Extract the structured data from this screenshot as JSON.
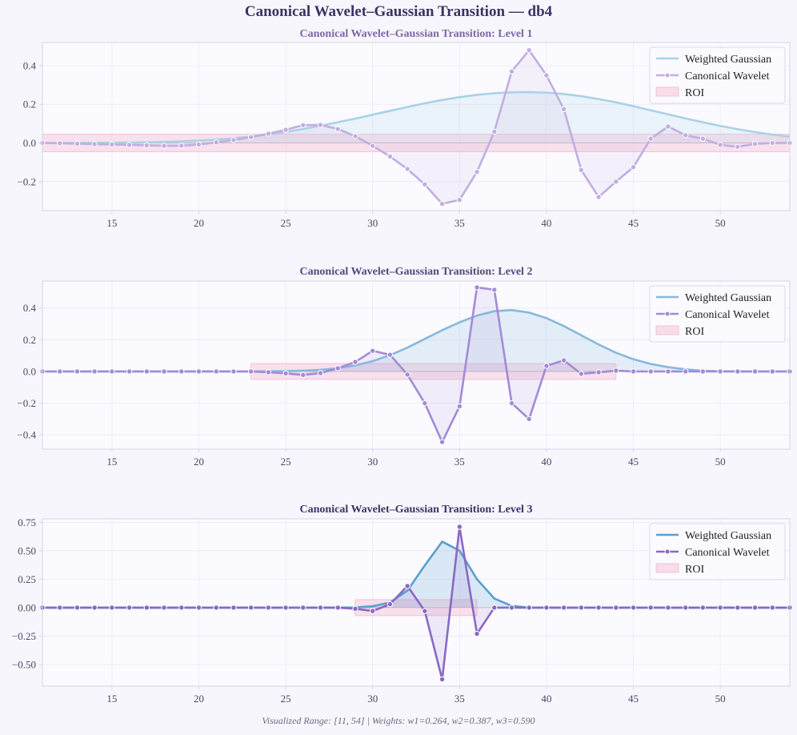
{
  "suptitle": "Canonical Wavelet–Gaussian Transition — db4",
  "footer": "Visualized Range: [11, 54] | Weights: w1=0.264, w2=0.387, w3=0.590",
  "colors": {
    "background": "#f8f6fd",
    "plot_bg": "#fbfaff",
    "frame": "#d8d2ea",
    "grid": "#ece8f6",
    "roi": "#f7cfdf",
    "tick_text": "#4b4566",
    "zero_line": "#8c88a0"
  },
  "chart_data": [
    {
      "type": "line",
      "title": "Canonical Wavelet–Gaussian Transition: Level 1",
      "title_color": "#7b68a6",
      "xlim": [
        11,
        54
      ],
      "ylim": [
        -0.35,
        0.52
      ],
      "yticks": [
        0.4,
        0.2,
        0.0,
        -0.2
      ],
      "ytick_labels": [
        "0.4",
        "0.2",
        "0.0",
        "−0.2"
      ],
      "xticks": [
        15,
        20,
        25,
        30,
        35,
        40,
        45,
        50
      ],
      "xtick_labels": [
        "15",
        "20",
        "25",
        "30",
        "35",
        "40",
        "45",
        "50"
      ],
      "roi": {
        "x": [
          11,
          54
        ],
        "y": [
          -0.045,
          0.045
        ]
      },
      "legend_position": "top-right",
      "legend": [
        "Weighted Gaussian",
        "Canonical Wavelet",
        "ROI"
      ],
      "gaussian_color": "#a9d2e6",
      "wavelet_color": "#c2aee0",
      "x": [
        11,
        12,
        13,
        14,
        15,
        16,
        17,
        18,
        19,
        20,
        21,
        22,
        23,
        24,
        25,
        26,
        27,
        28,
        29,
        30,
        31,
        32,
        33,
        34,
        35,
        36,
        37,
        38,
        39,
        40,
        41,
        42,
        43,
        44,
        45,
        46,
        47,
        48,
        49,
        50,
        51,
        52,
        53,
        54
      ],
      "series": [
        {
          "name": "Weighted Gaussian",
          "values": [
            0.0,
            0.0,
            0.0,
            0.001,
            0.001,
            0.002,
            0.003,
            0.005,
            0.008,
            0.012,
            0.017,
            0.024,
            0.033,
            0.044,
            0.057,
            0.072,
            0.089,
            0.107,
            0.126,
            0.146,
            0.166,
            0.186,
            0.205,
            0.222,
            0.237,
            0.249,
            0.257,
            0.262,
            0.263,
            0.26,
            0.253,
            0.242,
            0.227,
            0.21,
            0.19,
            0.169,
            0.148,
            0.127,
            0.107,
            0.088,
            0.071,
            0.056,
            0.043,
            0.032
          ]
        },
        {
          "name": "Canonical Wavelet",
          "values": [
            0.0,
            -0.002,
            -0.004,
            -0.006,
            -0.008,
            -0.01,
            -0.012,
            -0.015,
            -0.014,
            -0.008,
            0.003,
            0.015,
            0.03,
            0.048,
            0.068,
            0.092,
            0.093,
            0.072,
            0.035,
            -0.015,
            -0.07,
            -0.135,
            -0.215,
            -0.315,
            -0.295,
            -0.15,
            0.058,
            0.37,
            0.48,
            0.35,
            0.175,
            -0.14,
            -0.28,
            -0.2,
            -0.125,
            0.022,
            0.085,
            0.04,
            0.022,
            -0.01,
            -0.02,
            -0.005,
            0.0,
            0.0
          ]
        }
      ]
    },
    {
      "type": "line",
      "title": "Canonical Wavelet–Gaussian Transition: Level 2",
      "title_color": "#54497e",
      "xlim": [
        11,
        54
      ],
      "ylim": [
        -0.49,
        0.57
      ],
      "yticks": [
        0.4,
        0.2,
        0.0,
        -0.2,
        -0.4
      ],
      "ytick_labels": [
        "0.4",
        "0.2",
        "0.0",
        "−0.2",
        "−0.4"
      ],
      "xticks": [
        15,
        20,
        25,
        30,
        35,
        40,
        45,
        50
      ],
      "xtick_labels": [
        "15",
        "20",
        "25",
        "30",
        "35",
        "40",
        "45",
        "50"
      ],
      "roi": {
        "x": [
          23,
          44
        ],
        "y": [
          -0.05,
          0.05
        ]
      },
      "legend_position": "top-right",
      "legend": [
        "Weighted Gaussian",
        "Canonical Wavelet",
        "ROI"
      ],
      "gaussian_color": "#86b9dc",
      "wavelet_color": "#a38bd6",
      "x": [
        11,
        12,
        13,
        14,
        15,
        16,
        17,
        18,
        19,
        20,
        21,
        22,
        23,
        24,
        25,
        26,
        27,
        28,
        29,
        30,
        31,
        32,
        33,
        34,
        35,
        36,
        37,
        38,
        39,
        40,
        41,
        42,
        43,
        44,
        45,
        46,
        47,
        48,
        49,
        50,
        51,
        52,
        53,
        54
      ],
      "series": [
        {
          "name": "Weighted Gaussian",
          "values": [
            0,
            0,
            0,
            0,
            0,
            0,
            0,
            0,
            0,
            0,
            0,
            0,
            0,
            0.001,
            0.002,
            0.005,
            0.01,
            0.02,
            0.038,
            0.065,
            0.103,
            0.15,
            0.205,
            0.26,
            0.31,
            0.352,
            0.38,
            0.387,
            0.371,
            0.336,
            0.286,
            0.228,
            0.17,
            0.118,
            0.077,
            0.047,
            0.027,
            0.013,
            0.004,
            0.001,
            0,
            0,
            0,
            0
          ]
        },
        {
          "name": "Canonical Wavelet",
          "values": [
            0,
            0,
            0,
            0,
            0,
            0,
            0,
            0,
            0,
            0,
            0,
            0,
            0,
            -0.005,
            -0.012,
            -0.022,
            -0.01,
            0.02,
            0.06,
            0.13,
            0.105,
            -0.02,
            -0.2,
            -0.445,
            -0.22,
            0.53,
            0.515,
            -0.2,
            -0.3,
            0.035,
            0.07,
            -0.015,
            -0.005,
            0.005,
            0,
            0,
            0,
            0,
            0,
            0,
            0,
            0,
            0,
            0
          ]
        }
      ]
    },
    {
      "type": "line",
      "title": "Canonical Wavelet–Gaussian Transition: Level 3",
      "title_color": "#3b3362",
      "xlim": [
        11,
        54
      ],
      "ylim": [
        -0.69,
        0.78
      ],
      "yticks": [
        0.75,
        0.5,
        0.25,
        0.0,
        -0.25,
        -0.5
      ],
      "ytick_labels": [
        "0.75",
        "0.50",
        "0.25",
        "0.00",
        "−0.25",
        "−0.50"
      ],
      "xticks": [
        15,
        20,
        25,
        30,
        35,
        40,
        45,
        50
      ],
      "xtick_labels": [
        "15",
        "20",
        "25",
        "30",
        "35",
        "40",
        "45",
        "50"
      ],
      "roi": {
        "x": [
          29,
          36
        ],
        "y": [
          -0.07,
          0.07
        ]
      },
      "legend_position": "top-right",
      "legend": [
        "Weighted Gaussian",
        "Canonical Wavelet",
        "ROI"
      ],
      "gaussian_color": "#5aa0cc",
      "wavelet_color": "#8a68c6",
      "x": [
        11,
        12,
        13,
        14,
        15,
        16,
        17,
        18,
        19,
        20,
        21,
        22,
        23,
        24,
        25,
        26,
        27,
        28,
        29,
        30,
        31,
        32,
        33,
        34,
        35,
        36,
        37,
        38,
        39,
        40,
        41,
        42,
        43,
        44,
        45,
        46,
        47,
        48,
        49,
        50,
        51,
        52,
        53,
        54
      ],
      "series": [
        {
          "name": "Weighted Gaussian",
          "values": [
            0,
            0,
            0,
            0,
            0,
            0,
            0,
            0,
            0,
            0,
            0,
            0,
            0,
            0,
            0,
            0,
            0,
            0,
            0.002,
            0.012,
            0.045,
            0.15,
            0.37,
            0.58,
            0.5,
            0.25,
            0.08,
            0.015,
            0,
            0,
            0,
            0,
            0,
            0,
            0,
            0,
            0,
            0,
            0,
            0,
            0,
            0,
            0,
            0
          ]
        },
        {
          "name": "Canonical Wavelet",
          "values": [
            0,
            0,
            0,
            0,
            0,
            0,
            0,
            0,
            0,
            0,
            0,
            0,
            0,
            0,
            0,
            0,
            0,
            0,
            -0.01,
            -0.03,
            0.03,
            0.19,
            -0.03,
            -0.63,
            0.71,
            -0.23,
            0,
            0,
            0,
            0,
            0,
            0,
            0,
            0,
            0,
            0,
            0,
            0,
            0,
            0,
            0,
            0,
            0,
            0
          ]
        }
      ]
    }
  ]
}
